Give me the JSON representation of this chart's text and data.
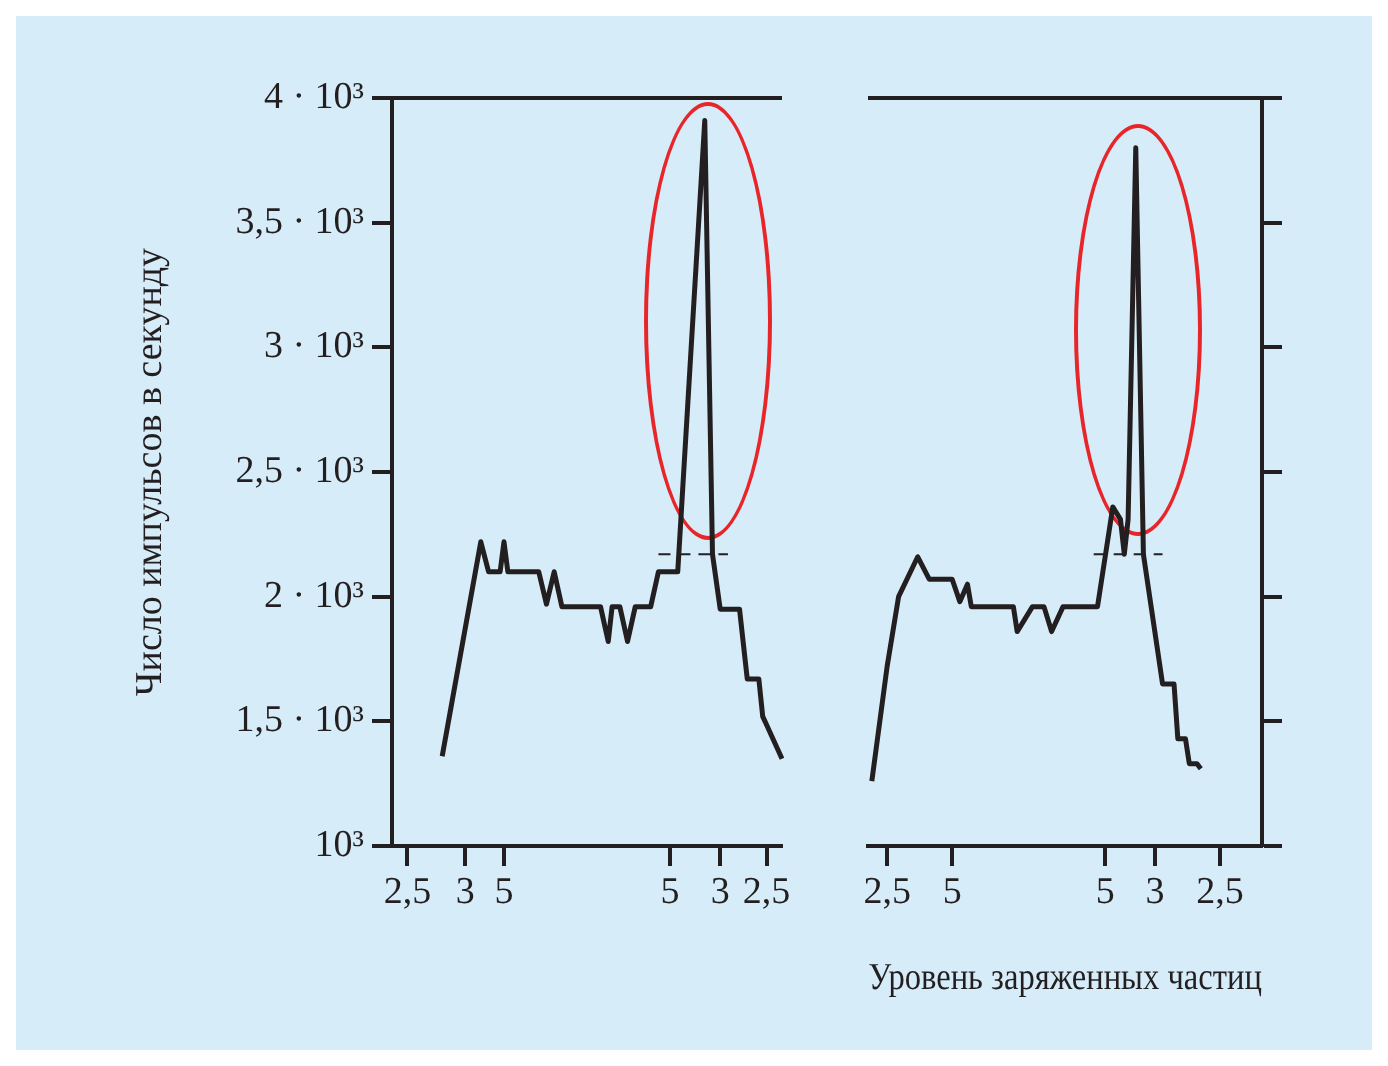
{
  "chart_data": [
    {
      "type": "line",
      "ylabel": "Число импульсов в секунду",
      "ylim": [
        1000,
        4000
      ],
      "yticks": [
        {
          "value": 1000,
          "label": "10³"
        },
        {
          "value": 1500,
          "label": "1,5 · 10³"
        },
        {
          "value": 2000,
          "label": "2 · 10³"
        },
        {
          "value": 2500,
          "label": "2,5 · 10³"
        },
        {
          "value": 3000,
          "label": "3 · 10³"
        },
        {
          "value": 3500,
          "label": "3,5 · 10³"
        },
        {
          "value": 4000,
          "label": "4 · 10³"
        }
      ],
      "categories": [
        null,
        null,
        null,
        null,
        "2,5",
        null,
        null,
        null,
        null,
        null,
        null,
        null,
        null,
        null,
        null,
        null,
        null,
        null,
        null,
        "3",
        null,
        null,
        null,
        null,
        null,
        null,
        null,
        null,
        null,
        "5",
        null,
        null,
        null,
        null,
        null,
        null,
        null,
        null,
        null,
        null,
        null,
        null,
        null,
        null,
        null,
        null,
        null,
        null,
        null,
        null,
        null,
        null,
        null,
        null,
        null,
        null,
        null,
        null,
        null,
        null,
        null,
        null,
        null,
        null,
        null,
        null,
        null,
        null,
        null,
        null,
        null,
        null,
        "5",
        null,
        null,
        null,
        null,
        null,
        null,
        null,
        null,
        null,
        null,
        null,
        null,
        "3",
        null,
        null,
        null,
        null,
        null,
        null,
        null,
        null,
        null,
        null,
        null,
        "2,5",
        null,
        null,
        null,
        null
      ],
      "grid": false,
      "legend": false,
      "marker": "none",
      "series": [
        {
          "color": "#231f20",
          "line_style": "solid",
          "values": [
            null,
            null,
            null,
            null,
            null,
            null,
            null,
            null,
            null,
            null,
            null,
            null,
            null,
            1360,
            null,
            null,
            null,
            null,
            null,
            null,
            null,
            null,
            null,
            2220,
            null,
            2100,
            null,
            null,
            2100,
            2220,
            2100,
            null,
            null,
            null,
            null,
            null,
            null,
            null,
            2100,
            null,
            1970,
            null,
            2100,
            null,
            1960,
            null,
            null,
            null,
            null,
            null,
            null,
            null,
            null,
            null,
            1960,
            null,
            1820,
            1960,
            null,
            1960,
            null,
            1820,
            null,
            1960,
            null,
            null,
            null,
            1960,
            null,
            2100,
            null,
            null,
            null,
            null,
            2100,
            null,
            null,
            null,
            null,
            null,
            null,
            3910,
            null,
            2170,
            null,
            1950,
            null,
            null,
            null,
            null,
            1950,
            null,
            1670,
            null,
            null,
            1670,
            1520,
            null,
            null,
            null,
            null,
            1350
          ]
        },
        {
          "color": "#231f20",
          "line_style": "dashed",
          "values": [
            null,
            null,
            null,
            null,
            null,
            null,
            null,
            null,
            null,
            null,
            null,
            null,
            null,
            null,
            null,
            null,
            null,
            null,
            null,
            null,
            null,
            null,
            null,
            null,
            null,
            null,
            null,
            null,
            null,
            null,
            null,
            null,
            null,
            null,
            null,
            null,
            null,
            null,
            null,
            null,
            null,
            null,
            null,
            null,
            null,
            null,
            null,
            null,
            null,
            null,
            null,
            null,
            null,
            null,
            null,
            null,
            null,
            null,
            null,
            null,
            null,
            null,
            null,
            null,
            null,
            null,
            null,
            null,
            null,
            2170,
            null,
            null,
            null,
            null,
            null,
            null,
            null,
            null,
            null,
            null,
            null,
            null,
            null,
            null,
            null,
            null,
            null,
            2170,
            null,
            null,
            null,
            null,
            null,
            null,
            null,
            null,
            null,
            null,
            null,
            null,
            null,
            null
          ]
        }
      ]
    },
    {
      "type": "line",
      "xlabel": "Уровень заряженных частиц",
      "ylim": [
        1000,
        4000
      ],
      "yticks": [
        {
          "value": 1000,
          "label": null
        },
        {
          "value": 1500,
          "label": null
        },
        {
          "value": 2000,
          "label": null
        },
        {
          "value": 2500,
          "label": null
        },
        {
          "value": 3000,
          "label": null
        },
        {
          "value": 3500,
          "label": null
        },
        {
          "value": 4000,
          "label": null
        }
      ],
      "categories": [
        null,
        null,
        null,
        null,
        null,
        "2,5",
        null,
        null,
        null,
        null,
        null,
        null,
        null,
        null,
        null,
        null,
        null,
        null,
        null,
        null,
        null,
        null,
        "5",
        null,
        null,
        null,
        null,
        null,
        null,
        null,
        null,
        null,
        null,
        null,
        null,
        null,
        null,
        null,
        null,
        null,
        null,
        null,
        null,
        null,
        null,
        null,
        null,
        null,
        null,
        null,
        null,
        null,
        null,
        null,
        null,
        null,
        null,
        null,
        null,
        null,
        null,
        null,
        "5",
        null,
        null,
        null,
        null,
        null,
        null,
        null,
        null,
        null,
        null,
        null,
        null,
        "3",
        null,
        null,
        null,
        null,
        null,
        null,
        null,
        null,
        null,
        null,
        null,
        null,
        null,
        null,
        null,
        null,
        "2,5",
        null,
        null,
        null,
        null,
        null,
        null,
        null,
        null,
        null,
        null,
        null
      ],
      "tick_labels": "x",
      "grid": false,
      "legend": false,
      "marker": "none",
      "series": [
        {
          "color": "#231f20",
          "line_style": "solid",
          "values": [
            null,
            1260,
            null,
            null,
            null,
            1720,
            null,
            null,
            2000,
            null,
            null,
            null,
            null,
            2160,
            null,
            null,
            2070,
            null,
            null,
            null,
            null,
            null,
            2070,
            null,
            1980,
            null,
            2050,
            1960,
            null,
            null,
            null,
            null,
            null,
            null,
            null,
            null,
            null,
            null,
            1960,
            1860,
            null,
            null,
            null,
            1960,
            null,
            null,
            1960,
            null,
            1860,
            null,
            null,
            1960,
            null,
            null,
            null,
            null,
            null,
            null,
            null,
            null,
            1960,
            null,
            null,
            null,
            2360,
            null,
            2310,
            2170,
            2310,
            null,
            3800,
            null,
            2170,
            null,
            null,
            null,
            null,
            1650,
            null,
            null,
            1650,
            1430,
            null,
            1430,
            1330,
            null,
            1330,
            1310,
            null,
            null,
            null,
            null,
            null,
            null,
            null,
            null,
            null,
            null,
            null,
            null,
            null,
            null,
            null,
            null
          ]
        },
        {
          "color": "#231f20",
          "line_style": "dashed",
          "values": [
            null,
            null,
            null,
            null,
            null,
            null,
            null,
            null,
            null,
            null,
            null,
            null,
            null,
            null,
            null,
            null,
            null,
            null,
            null,
            null,
            null,
            null,
            null,
            null,
            null,
            null,
            null,
            null,
            null,
            null,
            null,
            null,
            null,
            null,
            null,
            null,
            null,
            null,
            null,
            null,
            null,
            null,
            null,
            null,
            null,
            null,
            null,
            null,
            null,
            null,
            null,
            null,
            null,
            null,
            null,
            null,
            null,
            null,
            null,
            2170,
            null,
            null,
            null,
            null,
            null,
            null,
            null,
            null,
            null,
            null,
            null,
            null,
            null,
            null,
            null,
            null,
            null,
            2170,
            null,
            null,
            null,
            null,
            null,
            null,
            null,
            null,
            null,
            null,
            null,
            null,
            null,
            null,
            null,
            null,
            null,
            null,
            null,
            null,
            null,
            null,
            null,
            null,
            null,
            null
          ]
        }
      ]
    }
  ]
}
